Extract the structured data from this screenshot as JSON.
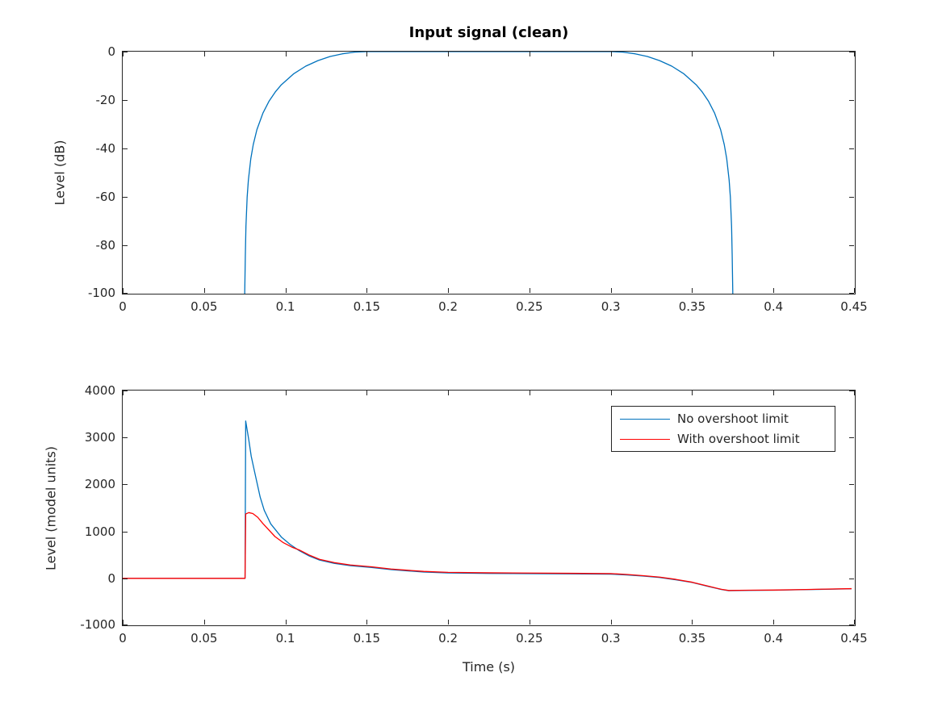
{
  "figure": {
    "background": "#ffffff",
    "axis_color": "#262626",
    "blue": "#0072bd",
    "red": "#ff0000"
  },
  "chart_data": [
    {
      "type": "line",
      "title": "Input signal (clean)",
      "xlabel": "",
      "ylabel": "Level (dB)",
      "xlim": [
        0,
        0.45
      ],
      "ylim": [
        -100,
        0
      ],
      "grid": false,
      "xtick_values": [
        0,
        0.05,
        0.1,
        0.15,
        0.2,
        0.25,
        0.3,
        0.35,
        0.4,
        0.45
      ],
      "xtick_labels": [
        "0",
        "0.05",
        "0.1",
        "0.15",
        "0.2",
        "0.25",
        "0.3",
        "0.35",
        "0.4",
        "0.45"
      ],
      "ytick_values": [
        0,
        -20,
        -40,
        -60,
        -80,
        -100
      ],
      "ytick_labels": [
        "0",
        "-20",
        "-40",
        "-60",
        "-80",
        "-100"
      ],
      "series": [
        {
          "name": "clean-envelope",
          "color": "#0072bd",
          "points": [
            [
              0.075,
              -100
            ],
            [
              0.07538,
              -84.2
            ],
            [
              0.07575,
              -72.2
            ],
            [
              0.0765,
              -60.1
            ],
            [
              0.07725,
              -53.1
            ],
            [
              0.07875,
              -44.2
            ],
            [
              0.08025,
              -38.4
            ],
            [
              0.0825,
              -32.2
            ],
            [
              0.08625,
              -25.3
            ],
            [
              0.09,
              -20.4
            ],
            [
              0.09375,
              -16.7
            ],
            [
              0.0975,
              -13.7
            ],
            [
              0.105,
              -9.2
            ],
            [
              0.1125,
              -6.0
            ],
            [
              0.12,
              -3.7
            ],
            [
              0.1275,
              -2.0
            ],
            [
              0.135,
              -0.9
            ],
            [
              0.1425,
              -0.2
            ],
            [
              0.15,
              0
            ],
            [
              0.3,
              0
            ],
            [
              0.3075,
              -0.2
            ],
            [
              0.315,
              -0.9
            ],
            [
              0.3225,
              -2.0
            ],
            [
              0.33,
              -3.7
            ],
            [
              0.3375,
              -6.0
            ],
            [
              0.345,
              -9.2
            ],
            [
              0.3525,
              -13.7
            ],
            [
              0.35625,
              -16.7
            ],
            [
              0.36,
              -20.4
            ],
            [
              0.36375,
              -25.3
            ],
            [
              0.3675,
              -32.2
            ],
            [
              0.36975,
              -38.4
            ],
            [
              0.37125,
              -44.2
            ],
            [
              0.37275,
              -53.1
            ],
            [
              0.3735,
              -60.1
            ],
            [
              0.37425,
              -72.2
            ],
            [
              0.37462,
              -84.2
            ],
            [
              0.375,
              -100
            ]
          ]
        }
      ]
    },
    {
      "type": "line",
      "title": "",
      "xlabel": "Time (s)",
      "ylabel": "Level (model units)",
      "xlim": [
        0,
        0.45
      ],
      "ylim": [
        -1000,
        4000
      ],
      "grid": false,
      "xtick_values": [
        0,
        0.05,
        0.1,
        0.15,
        0.2,
        0.25,
        0.3,
        0.35,
        0.4,
        0.45
      ],
      "xtick_labels": [
        "0",
        "0.05",
        "0.1",
        "0.15",
        "0.2",
        "0.25",
        "0.3",
        "0.35",
        "0.4",
        "0.45"
      ],
      "ytick_values": [
        4000,
        3000,
        2000,
        1000,
        0,
        -1000
      ],
      "ytick_labels": [
        "4000",
        "3000",
        "2000",
        "1000",
        "0",
        "-1000"
      ],
      "legend": {
        "position": "northeast",
        "entries": [
          {
            "label": "No overshoot limit",
            "color": "#0072bd"
          },
          {
            "label": "With overshoot limit",
            "color": "#ff0000"
          }
        ]
      },
      "series": [
        {
          "name": "No overshoot limit",
          "color": "#0072bd",
          "points": [
            [
              0,
              0
            ],
            [
              0.05,
              0
            ],
            [
              0.074,
              0
            ],
            [
              0.0752,
              0
            ],
            [
              0.0756,
              3350
            ],
            [
              0.0775,
              2950
            ],
            [
              0.079,
              2600
            ],
            [
              0.081,
              2280
            ],
            [
              0.0845,
              1730
            ],
            [
              0.087,
              1450
            ],
            [
              0.091,
              1160
            ],
            [
              0.0975,
              880
            ],
            [
              0.103,
              720
            ],
            [
              0.1085,
              590
            ],
            [
              0.115,
              470
            ],
            [
              0.121,
              390
            ],
            [
              0.13,
              320
            ],
            [
              0.14,
              270
            ],
            [
              0.153,
              230
            ],
            [
              0.165,
              185
            ],
            [
              0.185,
              135
            ],
            [
              0.2,
              115
            ],
            [
              0.225,
              105
            ],
            [
              0.25,
              100
            ],
            [
              0.275,
              95
            ],
            [
              0.3,
              90
            ],
            [
              0.31,
              72
            ],
            [
              0.32,
              48
            ],
            [
              0.33,
              18
            ],
            [
              0.34,
              -30
            ],
            [
              0.35,
              -88
            ],
            [
              0.36,
              -172
            ],
            [
              0.368,
              -238
            ],
            [
              0.3725,
              -262
            ],
            [
              0.385,
              -256
            ],
            [
              0.4,
              -252
            ],
            [
              0.42,
              -240
            ],
            [
              0.448,
              -222
            ]
          ]
        },
        {
          "name": "With overshoot limit",
          "color": "#ff0000",
          "points": [
            [
              0,
              0
            ],
            [
              0.05,
              0
            ],
            [
              0.074,
              0
            ],
            [
              0.0752,
              0
            ],
            [
              0.0756,
              1370
            ],
            [
              0.0775,
              1400
            ],
            [
              0.08,
              1380
            ],
            [
              0.083,
              1300
            ],
            [
              0.0861,
              1170
            ],
            [
              0.0936,
              890
            ],
            [
              0.0985,
              765
            ],
            [
              0.104,
              665
            ],
            [
              0.1085,
              605
            ],
            [
              0.115,
              490
            ],
            [
              0.121,
              405
            ],
            [
              0.13,
              335
            ],
            [
              0.14,
              285
            ],
            [
              0.153,
              245
            ],
            [
              0.165,
              198
            ],
            [
              0.185,
              148
            ],
            [
              0.2,
              128
            ],
            [
              0.225,
              118
            ],
            [
              0.25,
              112
            ],
            [
              0.275,
              107
            ],
            [
              0.3,
              101
            ],
            [
              0.31,
              83
            ],
            [
              0.32,
              57
            ],
            [
              0.33,
              26
            ],
            [
              0.34,
              -22
            ],
            [
              0.35,
              -82
            ],
            [
              0.36,
              -166
            ],
            [
              0.368,
              -234
            ],
            [
              0.3725,
              -258
            ],
            [
              0.385,
              -253
            ],
            [
              0.4,
              -249
            ],
            [
              0.42,
              -237
            ],
            [
              0.448,
              -219
            ]
          ]
        }
      ]
    }
  ]
}
